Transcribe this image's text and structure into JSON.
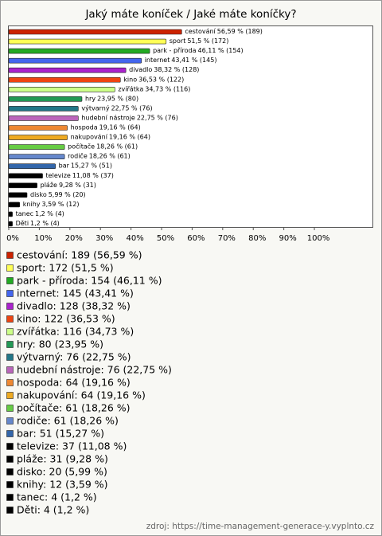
{
  "chart_data": {
    "type": "bar",
    "orientation": "horizontal",
    "title": "Jaký máte koníček / Jaké máte koníčky?",
    "categories": [
      "cestování",
      "sport",
      "park - příroda",
      "internet",
      "divadlo",
      "kino",
      "zvířátka",
      "hry",
      "výtvarný",
      "hudební nástroje",
      "hospoda",
      "nakupování",
      "počítače",
      "rodiče",
      "bar",
      "televize",
      "pláže",
      "disko",
      "knihy",
      "tanec",
      "Děti"
    ],
    "values": [
      56.59,
      51.5,
      46.11,
      43.41,
      38.32,
      36.53,
      34.73,
      23.95,
      22.75,
      22.75,
      19.16,
      19.16,
      18.26,
      18.26,
      15.27,
      11.08,
      9.28,
      5.99,
      3.59,
      1.2,
      1.2
    ],
    "value_labels": [
      "56,59 % (189)",
      "51,5 % (172)",
      "46,11 % (154)",
      "43,41 % (145)",
      "38,32 % (128)",
      "36,53 % (122)",
      "34,73 % (116)",
      "23,95 % (80)",
      "22,75 % (76)",
      "22,75 % (76)",
      "19,16 % (64)",
      "19,16 % (64)",
      "18,26 % (61)",
      "18,26 % (61)",
      "15,27 % (51)",
      "11,08 % (37)",
      "9,28 % (31)",
      "5,99 % (20)",
      "3,59 % (12)",
      "1,2 % (4)",
      "1,2 % (4)"
    ],
    "colors": [
      "#cc2200",
      "#ffff55",
      "#22aa22",
      "#4466ee",
      "#aa22cc",
      "#ee4411",
      "#ccff88",
      "#229955",
      "#227788",
      "#bb66bb",
      "#ee8833",
      "#eeaa22",
      "#66cc44",
      "#6688cc",
      "#3366aa",
      "#000000",
      "#000000",
      "#000000",
      "#000000",
      "#000000",
      "#000000"
    ],
    "legend_labels": [
      "cestování: 189 (56,59 %)",
      "sport: 172 (51,5 %)",
      "park - příroda: 154 (46,11 %)",
      "internet: 145 (43,41 %)",
      "divadlo: 128 (38,32 %)",
      "kino: 122 (36,53 %)",
      "zvířátka: 116 (34,73 %)",
      "hry: 80 (23,95 %)",
      "výtvarný: 76 (22,75 %)",
      "hudební nástroje: 76 (22,75 %)",
      "hospoda: 64 (19,16 %)",
      "nakupování: 64 (19,16 %)",
      "počítače: 61 (18,26 %)",
      "rodiče: 61 (18,26 %)",
      "bar: 51 (15,27 %)",
      "televize: 37 (11,08 %)",
      "pláže: 31 (9,28 %)",
      "disko: 20 (5,99 %)",
      "knihy: 12 (3,59 %)",
      "tanec: 4 (1,2 %)",
      "Děti: 4 (1,2 %)"
    ],
    "xlim": [
      0,
      119
    ],
    "xticks": [
      {
        "value": 0,
        "label": "0%"
      },
      {
        "value": 10,
        "label": "10%"
      },
      {
        "value": 20,
        "label": "20%"
      },
      {
        "value": 30,
        "label": "30%"
      },
      {
        "value": 40,
        "label": "40%"
      },
      {
        "value": 50,
        "label": "50%"
      },
      {
        "value": 60,
        "label": "60%"
      },
      {
        "value": 70,
        "label": "70%"
      },
      {
        "value": 80,
        "label": "80%"
      },
      {
        "value": 90,
        "label": "90%"
      },
      {
        "value": 100,
        "label": "100%"
      }
    ],
    "grid": false,
    "source": "zdroj: https://time-management-generace-y.vyplnto.cz"
  }
}
